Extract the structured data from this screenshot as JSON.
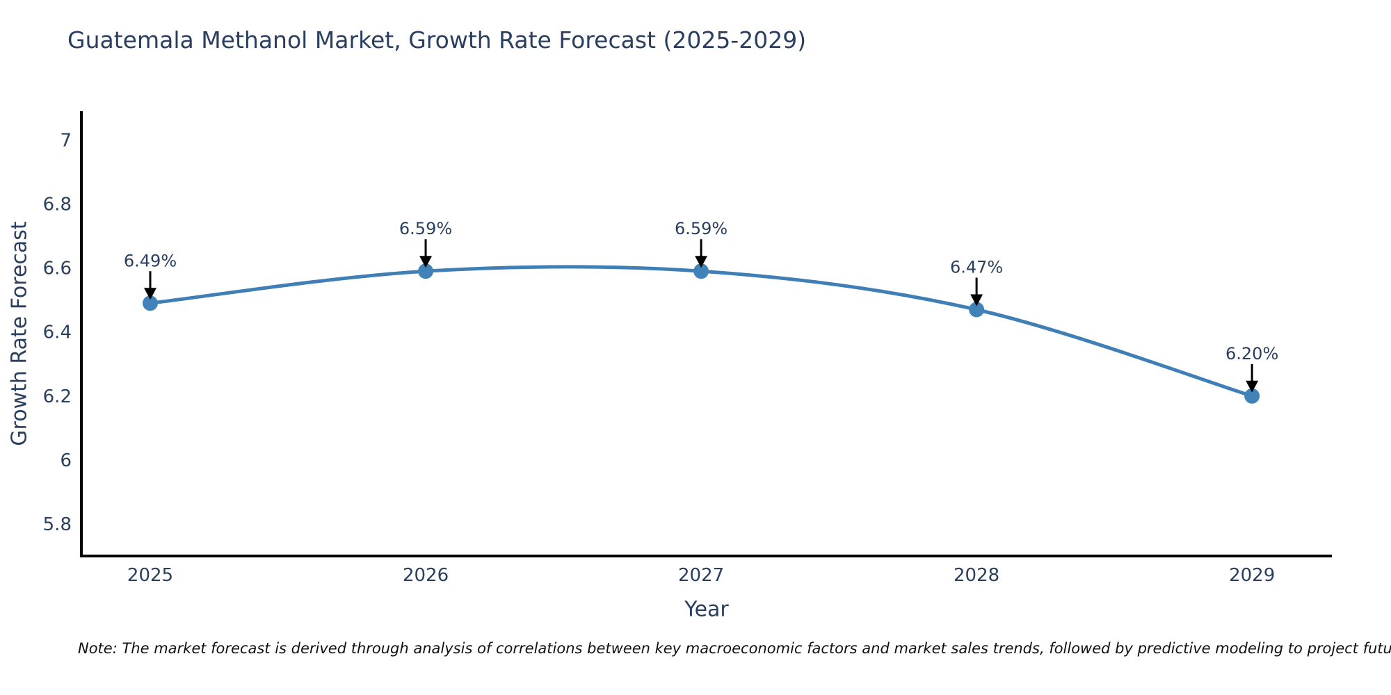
{
  "chart_data": {
    "type": "line",
    "title": "Guatemala Methanol Market, Growth Rate Forecast (2025-2029)",
    "xlabel": "Year",
    "ylabel": "Growth Rate Forecast",
    "x": [
      2025,
      2026,
      2027,
      2028,
      2029
    ],
    "y": [
      6.49,
      6.59,
      6.59,
      6.47,
      6.2
    ],
    "point_labels": [
      "6.49%",
      "6.59%",
      "6.59%",
      "6.47%",
      "6.20%"
    ],
    "yticks": [
      5.8,
      6,
      6.2,
      6.4,
      6.6,
      6.8,
      7
    ],
    "xlim": [
      2024.75,
      2029.29
    ],
    "ylim": [
      5.7,
      7.09
    ],
    "grid": false,
    "legend": false,
    "smooth": true,
    "line_color": "#3f7fb6",
    "marker_color": "#4183b8",
    "axis_color": "#000000",
    "label_color": "#2a3f5f",
    "annotation_color": "#000000"
  },
  "note": "Note: The market forecast is derived through analysis of correlations between key macroeconomic factors and market sales trends, followed by predictive modeling to project future sales"
}
